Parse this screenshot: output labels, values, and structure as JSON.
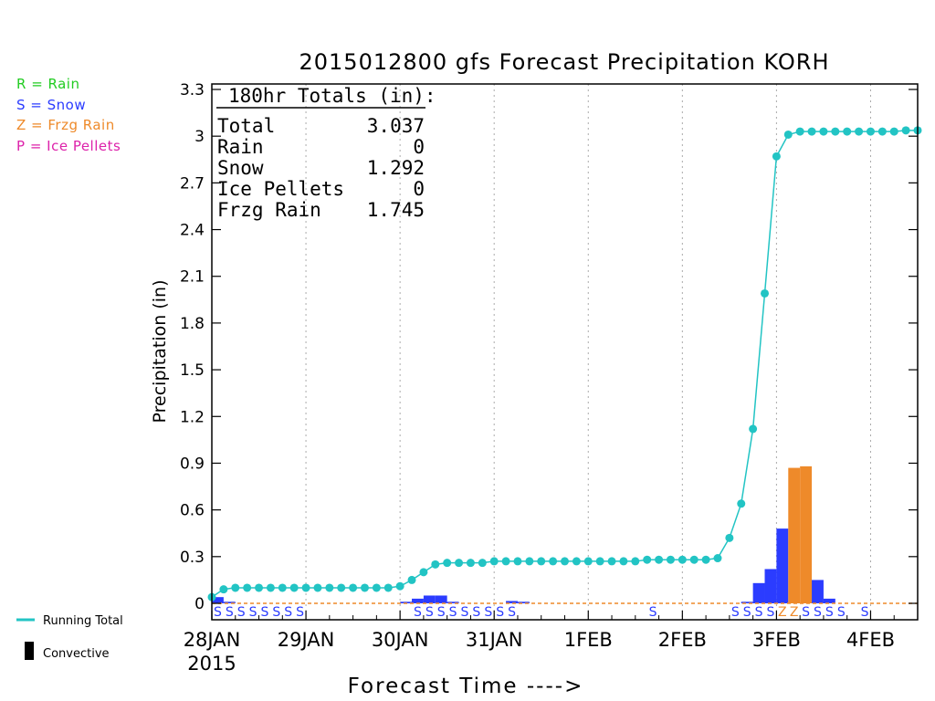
{
  "chart_data": {
    "type": "bar",
    "title": "2015012800 gfs Forecast Precipitation KORH",
    "xlabel": "Forecast Time ---->",
    "ylabel": "Precipitation (in)",
    "ylim": [
      0,
      3.3
    ],
    "yticks": [
      "0",
      "0.3",
      "0.6",
      "0.9",
      "1.2",
      "1.5",
      "1.8",
      "2.1",
      "2.4",
      "2.7",
      "3",
      "3.3"
    ],
    "x_unit_hours": 3,
    "x_range_hours": [
      0,
      180
    ],
    "x_tick_labels": [
      {
        "hour": 0,
        "label": "28JAN"
      },
      {
        "hour": 24,
        "label": "29JAN"
      },
      {
        "hour": 48,
        "label": "30JAN"
      },
      {
        "hour": 72,
        "label": "31JAN"
      },
      {
        "hour": 96,
        "label": "1FEB"
      },
      {
        "hour": 120,
        "label": "2FEB"
      },
      {
        "hour": 144,
        "label": "3FEB"
      },
      {
        "hour": 168,
        "label": "4FEB"
      }
    ],
    "year_label": "2015",
    "grid": true,
    "legend_entries": [
      {
        "key": "R",
        "text": "R = Rain",
        "color": "#22cc22"
      },
      {
        "key": "S",
        "text": "S = Snow",
        "color": "#2b3cff"
      },
      {
        "key": "Z",
        "text": "Z = Frzg Rain",
        "color": "#ee8a2a"
      },
      {
        "key": "P",
        "text": "P = Ice Pellets",
        "color": "#dd22aa"
      }
    ],
    "bottom_legend": {
      "running_total": {
        "text": "Running Total",
        "color": "#22c4c4"
      },
      "convective": {
        "text": "Convective",
        "color": "#000000"
      }
    },
    "totals_box": {
      "header": "180hr Totals (in):",
      "rows": [
        {
          "label": "Total",
          "value": "3.037"
        },
        {
          "label": "Rain",
          "value": "0"
        },
        {
          "label": "Snow",
          "value": "1.292"
        },
        {
          "label": "Ice Pellets",
          "value": "0"
        },
        {
          "label": "Frzg Rain",
          "value": "1.745"
        }
      ]
    },
    "precip_bars": [
      {
        "hour": 0,
        "value": 0.04,
        "type": "snow"
      },
      {
        "hour": 3,
        "value": 0.01,
        "type": "snow"
      },
      {
        "hour": 48,
        "value": 0.01,
        "type": "snow"
      },
      {
        "hour": 51,
        "value": 0.03,
        "type": "snow"
      },
      {
        "hour": 54,
        "value": 0.05,
        "type": "snow"
      },
      {
        "hour": 57,
        "value": 0.05,
        "type": "snow"
      },
      {
        "hour": 60,
        "value": 0.01,
        "type": "snow"
      },
      {
        "hour": 75,
        "value": 0.015,
        "type": "snow"
      },
      {
        "hour": 78,
        "value": 0.01,
        "type": "snow"
      },
      {
        "hour": 135,
        "value": 0.01,
        "type": "snow"
      },
      {
        "hour": 138,
        "value": 0.13,
        "type": "snow"
      },
      {
        "hour": 141,
        "value": 0.22,
        "type": "snow"
      },
      {
        "hour": 144,
        "value": 0.48,
        "type": "snow"
      },
      {
        "hour": 147,
        "value": 0.87,
        "type": "frzg_rain"
      },
      {
        "hour": 150,
        "value": 0.88,
        "type": "frzg_rain"
      },
      {
        "hour": 153,
        "value": 0.15,
        "type": "snow"
      },
      {
        "hour": 156,
        "value": 0.03,
        "type": "snow"
      }
    ],
    "ptype_labels": [
      {
        "hour": 0,
        "code": "S"
      },
      {
        "hour": 3,
        "code": "S"
      },
      {
        "hour": 6,
        "code": "S"
      },
      {
        "hour": 9,
        "code": "S"
      },
      {
        "hour": 12,
        "code": "S"
      },
      {
        "hour": 15,
        "code": "S"
      },
      {
        "hour": 18,
        "code": "S"
      },
      {
        "hour": 21,
        "code": "S"
      },
      {
        "hour": 51,
        "code": "S"
      },
      {
        "hour": 54,
        "code": "S"
      },
      {
        "hour": 57,
        "code": "S"
      },
      {
        "hour": 60,
        "code": "S"
      },
      {
        "hour": 63,
        "code": "S"
      },
      {
        "hour": 66,
        "code": "S"
      },
      {
        "hour": 69,
        "code": "S"
      },
      {
        "hour": 72,
        "code": "S"
      },
      {
        "hour": 75,
        "code": "S"
      },
      {
        "hour": 111,
        "code": "S"
      },
      {
        "hour": 132,
        "code": "S"
      },
      {
        "hour": 135,
        "code": "S"
      },
      {
        "hour": 138,
        "code": "S"
      },
      {
        "hour": 141,
        "code": "S"
      },
      {
        "hour": 144,
        "code": "Z"
      },
      {
        "hour": 147,
        "code": "Z"
      },
      {
        "hour": 150,
        "code": "S"
      },
      {
        "hour": 153,
        "code": "S"
      },
      {
        "hour": 156,
        "code": "S"
      },
      {
        "hour": 159,
        "code": "S"
      },
      {
        "hour": 165,
        "code": "S"
      }
    ],
    "running_total": [
      [
        0,
        0.04
      ],
      [
        3,
        0.09
      ],
      [
        6,
        0.1
      ],
      [
        9,
        0.1
      ],
      [
        12,
        0.1
      ],
      [
        15,
        0.1
      ],
      [
        18,
        0.1
      ],
      [
        21,
        0.1
      ],
      [
        24,
        0.1
      ],
      [
        27,
        0.1
      ],
      [
        30,
        0.1
      ],
      [
        33,
        0.1
      ],
      [
        36,
        0.1
      ],
      [
        39,
        0.1
      ],
      [
        42,
        0.1
      ],
      [
        45,
        0.1
      ],
      [
        48,
        0.11
      ],
      [
        51,
        0.15
      ],
      [
        54,
        0.2
      ],
      [
        57,
        0.25
      ],
      [
        60,
        0.26
      ],
      [
        63,
        0.26
      ],
      [
        66,
        0.26
      ],
      [
        69,
        0.26
      ],
      [
        72,
        0.27
      ],
      [
        75,
        0.27
      ],
      [
        78,
        0.27
      ],
      [
        81,
        0.27
      ],
      [
        84,
        0.27
      ],
      [
        87,
        0.27
      ],
      [
        90,
        0.27
      ],
      [
        93,
        0.27
      ],
      [
        96,
        0.27
      ],
      [
        99,
        0.27
      ],
      [
        102,
        0.27
      ],
      [
        105,
        0.27
      ],
      [
        108,
        0.27
      ],
      [
        111,
        0.28
      ],
      [
        114,
        0.28
      ],
      [
        117,
        0.28
      ],
      [
        120,
        0.28
      ],
      [
        123,
        0.28
      ],
      [
        126,
        0.28
      ],
      [
        129,
        0.29
      ],
      [
        132,
        0.42
      ],
      [
        135,
        0.64
      ],
      [
        138,
        1.12
      ],
      [
        141,
        1.99
      ],
      [
        144,
        2.87
      ],
      [
        147,
        3.01
      ],
      [
        150,
        3.03
      ],
      [
        153,
        3.03
      ],
      [
        156,
        3.03
      ],
      [
        159,
        3.03
      ],
      [
        162,
        3.03
      ],
      [
        165,
        3.03
      ],
      [
        168,
        3.03
      ],
      [
        171,
        3.03
      ],
      [
        174,
        3.03
      ],
      [
        177,
        3.037
      ],
      [
        180,
        3.037
      ]
    ],
    "colors": {
      "snow": "#2b3cff",
      "frzg_rain": "#ee8a2a",
      "rain": "#22cc22",
      "ice_pellets": "#dd22aa",
      "running_total": "#22c4c4",
      "grid": "#aaaaaa",
      "zero_line": "#ee8a2a"
    }
  }
}
